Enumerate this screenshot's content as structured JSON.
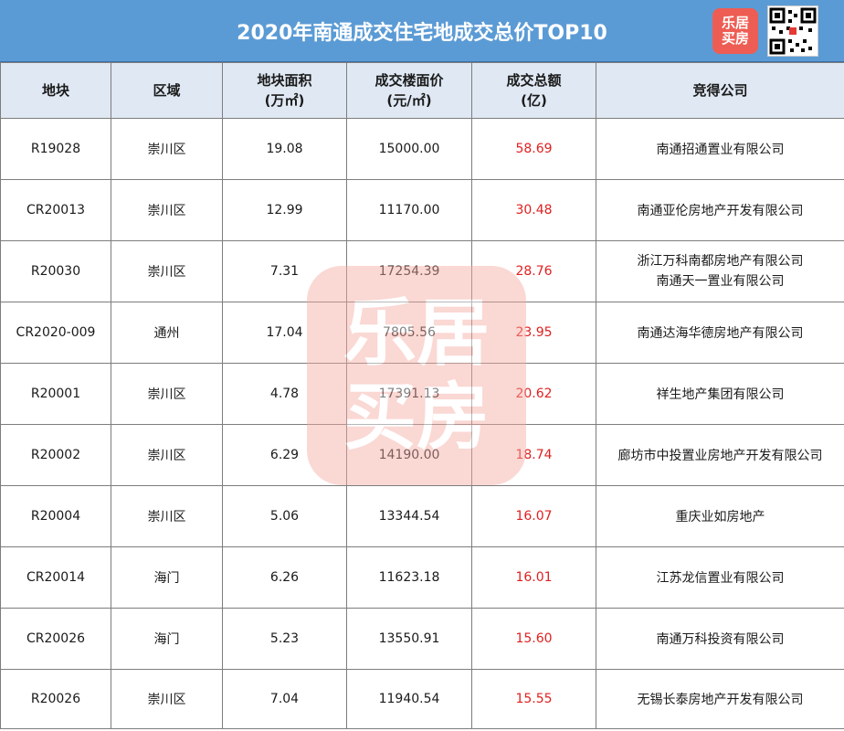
{
  "title": "2020年南通成交住宅地成交总价TOP10",
  "logo_text": "乐居买房",
  "accent_color": "#5b9bd5",
  "total_color": "#e02020",
  "headers": [
    "地块",
    "区域",
    [
      "地块面积",
      "(万㎡)"
    ],
    [
      "成交楼面价",
      "(元/㎡)"
    ],
    [
      "成交总额",
      "(亿)"
    ],
    "竞得公司"
  ],
  "rows": [
    {
      "parcel": "R19028",
      "district": "崇川区",
      "area": "19.08",
      "price": "15000.00",
      "total": "58.69",
      "company": [
        "南通招通置业有限公司"
      ]
    },
    {
      "parcel": "CR20013",
      "district": "崇川区",
      "area": "12.99",
      "price": "11170.00",
      "total": "30.48",
      "company": [
        "南通亚伦房地产开发有限公司"
      ]
    },
    {
      "parcel": "R20030",
      "district": "崇川区",
      "area": "7.31",
      "price": "17254.39",
      "total": "28.76",
      "company": [
        "浙江万科南都房地产有限公司",
        "南通天一置业有限公司"
      ]
    },
    {
      "parcel": "CR2020-009",
      "district": "通州",
      "area": "17.04",
      "price": "7805.56",
      "total": "23.95",
      "company": [
        "南通达海华德房地产有限公司"
      ]
    },
    {
      "parcel": "R20001",
      "district": "崇川区",
      "area": "4.78",
      "price": "17391.13",
      "total": "20.62",
      "company": [
        "祥生地产集团有限公司"
      ]
    },
    {
      "parcel": "R20002",
      "district": "崇川区",
      "area": "6.29",
      "price": "14190.00",
      "total": "18.74",
      "company": [
        "廊坊市中投置业房地产开发有限公司"
      ]
    },
    {
      "parcel": "R20004",
      "district": "崇川区",
      "area": "5.06",
      "price": "13344.54",
      "total": "16.07",
      "company": [
        "重庆业如房地产"
      ]
    },
    {
      "parcel": "CR20014",
      "district": "海门",
      "area": "6.26",
      "price": "11623.18",
      "total": "16.01",
      "company": [
        "江苏龙信置业有限公司"
      ]
    },
    {
      "parcel": "CR20026",
      "district": "海门",
      "area": "5.23",
      "price": "13550.91",
      "total": "15.60",
      "company": [
        "南通万科投资有限公司"
      ]
    },
    {
      "parcel": "R20026",
      "district": "崇川区",
      "area": "7.04",
      "price": "11940.54",
      "total": "15.55",
      "company": [
        "无锡长泰房地产开发有限公司"
      ]
    }
  ]
}
